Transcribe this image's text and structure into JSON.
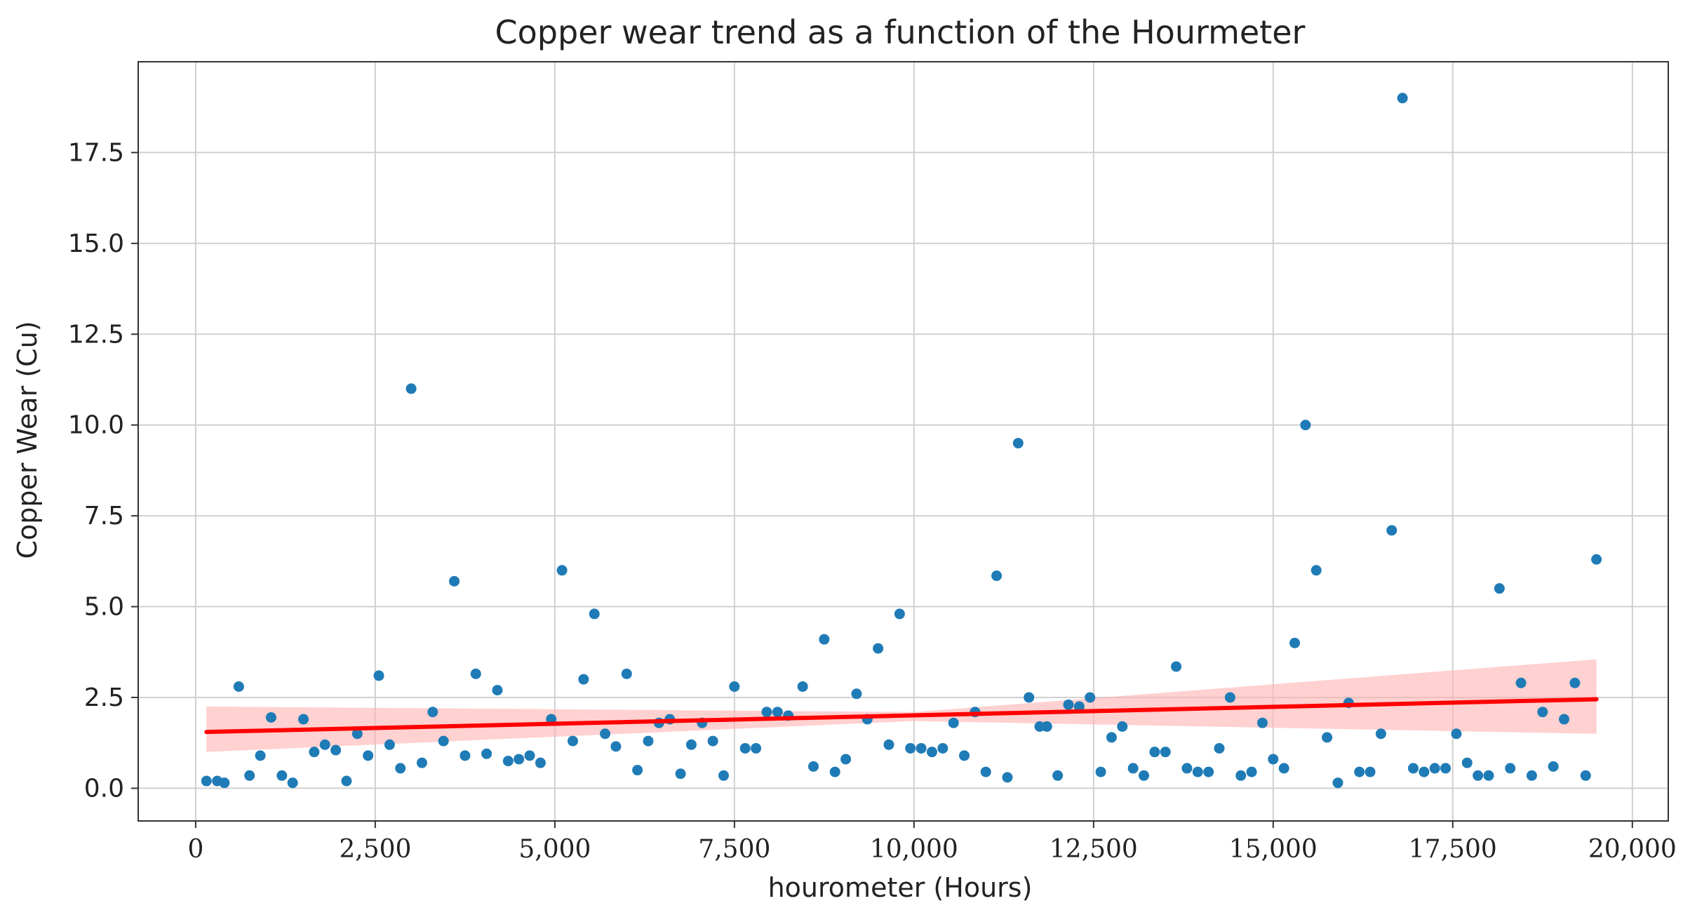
{
  "chart_data": {
    "type": "scatter",
    "title": "Copper wear trend as a function of the Hourmeter",
    "xlabel": "hourometer (Hours)",
    "ylabel": "Copper Wear (Cu)",
    "xlim": [
      -800,
      20500
    ],
    "ylim": [
      -0.9,
      20.0
    ],
    "grid": true,
    "x_ticks": [
      0,
      2500,
      5000,
      7500,
      10000,
      12500,
      15000,
      17500,
      20000
    ],
    "x_tick_labels": [
      "0",
      "2,500",
      "5,000",
      "7,500",
      "10,000",
      "12,500",
      "15,000",
      "17,500",
      "20,000"
    ],
    "y_ticks": [
      0.0,
      2.5,
      5.0,
      7.5,
      10.0,
      12.5,
      15.0,
      17.5
    ],
    "y_tick_labels": [
      "0.0",
      "2.5",
      "5.0",
      "7.5",
      "10.0",
      "12.5",
      "15.0",
      "17.5"
    ],
    "colors": {
      "points": "#1f7bb6",
      "trend_line": "#ff0000",
      "confidence_band": "#ffb3b3",
      "grid": "#d0d0d0",
      "axes": "#333333"
    },
    "trend_line": {
      "x": [
        150,
        19500
      ],
      "y": [
        1.55,
        2.45
      ]
    },
    "confidence_band": {
      "x": [
        150,
        10000,
        19500
      ],
      "lower": [
        1.0,
        1.85,
        1.5
      ],
      "upper": [
        2.25,
        2.1,
        3.55
      ]
    },
    "points": [
      [
        150,
        0.2
      ],
      [
        300,
        0.2
      ],
      [
        400,
        0.15
      ],
      [
        600,
        2.8
      ],
      [
        750,
        0.35
      ],
      [
        900,
        0.9
      ],
      [
        1050,
        1.95
      ],
      [
        1200,
        0.35
      ],
      [
        1350,
        0.15
      ],
      [
        1500,
        1.9
      ],
      [
        1650,
        1.0
      ],
      [
        1800,
        1.2
      ],
      [
        1950,
        1.05
      ],
      [
        2100,
        0.2
      ],
      [
        2250,
        1.5
      ],
      [
        2400,
        0.9
      ],
      [
        2550,
        3.1
      ],
      [
        2700,
        1.2
      ],
      [
        2850,
        0.55
      ],
      [
        3000,
        11.0
      ],
      [
        3150,
        0.7
      ],
      [
        3300,
        2.1
      ],
      [
        3450,
        1.3
      ],
      [
        3600,
        5.7
      ],
      [
        3750,
        0.9
      ],
      [
        3900,
        3.15
      ],
      [
        4050,
        0.95
      ],
      [
        4200,
        2.7
      ],
      [
        4350,
        0.75
      ],
      [
        4500,
        0.8
      ],
      [
        4650,
        0.9
      ],
      [
        4800,
        0.7
      ],
      [
        4950,
        1.9
      ],
      [
        5100,
        6.0
      ],
      [
        5250,
        1.3
      ],
      [
        5400,
        3.0
      ],
      [
        5550,
        4.8
      ],
      [
        5700,
        1.5
      ],
      [
        5850,
        1.15
      ],
      [
        6000,
        3.15
      ],
      [
        6150,
        0.5
      ],
      [
        6300,
        1.3
      ],
      [
        6450,
        1.8
      ],
      [
        6600,
        1.9
      ],
      [
        6750,
        0.4
      ],
      [
        6900,
        1.2
      ],
      [
        7050,
        1.8
      ],
      [
        7200,
        1.3
      ],
      [
        7350,
        0.35
      ],
      [
        7500,
        2.8
      ],
      [
        7650,
        1.1
      ],
      [
        7800,
        1.1
      ],
      [
        7950,
        2.1
      ],
      [
        8100,
        2.1
      ],
      [
        8250,
        2.0
      ],
      [
        8450,
        2.8
      ],
      [
        8600,
        0.6
      ],
      [
        8750,
        4.1
      ],
      [
        8900,
        0.45
      ],
      [
        9050,
        0.8
      ],
      [
        9200,
        2.6
      ],
      [
        9350,
        1.9
      ],
      [
        9500,
        3.85
      ],
      [
        9650,
        1.2
      ],
      [
        9800,
        4.8
      ],
      [
        9950,
        1.1
      ],
      [
        10100,
        1.1
      ],
      [
        10250,
        1.0
      ],
      [
        10400,
        1.1
      ],
      [
        10550,
        1.8
      ],
      [
        10700,
        0.9
      ],
      [
        10850,
        2.1
      ],
      [
        11000,
        0.45
      ],
      [
        11150,
        5.85
      ],
      [
        11300,
        0.3
      ],
      [
        11450,
        9.5
      ],
      [
        11600,
        2.5
      ],
      [
        11750,
        1.7
      ],
      [
        11850,
        1.7
      ],
      [
        12000,
        0.35
      ],
      [
        12150,
        2.3
      ],
      [
        12300,
        2.25
      ],
      [
        12450,
        2.5
      ],
      [
        12600,
        0.45
      ],
      [
        12750,
        1.4
      ],
      [
        12900,
        1.7
      ],
      [
        13050,
        0.55
      ],
      [
        13200,
        0.35
      ],
      [
        13350,
        1.0
      ],
      [
        13500,
        1.0
      ],
      [
        13650,
        3.35
      ],
      [
        13800,
        0.55
      ],
      [
        13950,
        0.45
      ],
      [
        14100,
        0.45
      ],
      [
        14250,
        1.1
      ],
      [
        14400,
        2.5
      ],
      [
        14550,
        0.35
      ],
      [
        14700,
        0.45
      ],
      [
        14850,
        1.8
      ],
      [
        15000,
        0.8
      ],
      [
        15150,
        0.55
      ],
      [
        15300,
        4.0
      ],
      [
        15450,
        10.0
      ],
      [
        15600,
        6.0
      ],
      [
        15750,
        1.4
      ],
      [
        15900,
        0.15
      ],
      [
        16050,
        2.35
      ],
      [
        16200,
        0.45
      ],
      [
        16350,
        0.45
      ],
      [
        16500,
        1.5
      ],
      [
        16650,
        7.1
      ],
      [
        16800,
        19.0
      ],
      [
        16950,
        0.55
      ],
      [
        17100,
        0.45
      ],
      [
        17250,
        0.55
      ],
      [
        17400,
        0.55
      ],
      [
        17550,
        1.5
      ],
      [
        17700,
        0.7
      ],
      [
        17850,
        0.35
      ],
      [
        18000,
        0.35
      ],
      [
        18150,
        5.5
      ],
      [
        18300,
        0.55
      ],
      [
        18450,
        2.9
      ],
      [
        18600,
        0.35
      ],
      [
        18750,
        2.1
      ],
      [
        18900,
        0.6
      ],
      [
        19050,
        1.9
      ],
      [
        19200,
        2.9
      ],
      [
        19350,
        0.35
      ],
      [
        19500,
        6.3
      ]
    ]
  }
}
